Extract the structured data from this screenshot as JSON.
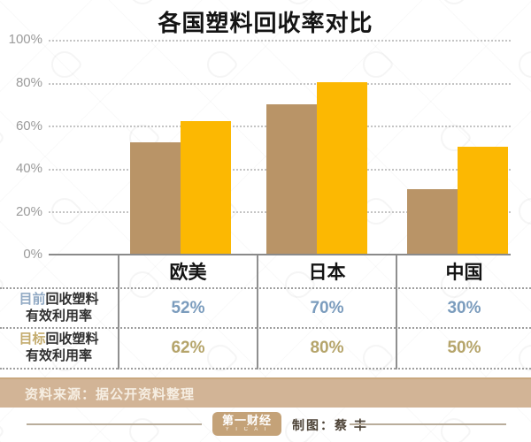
{
  "title": "各国塑料回收率对比",
  "chart_data": {
    "type": "bar",
    "title": "各国塑料回收率对比",
    "categories": [
      "欧美",
      "日本",
      "中国"
    ],
    "series": [
      {
        "name": "目前回收塑料有效利用率",
        "values": [
          52,
          70,
          30
        ],
        "color": "#b99467"
      },
      {
        "name": "目标回收塑料有效利用率",
        "values": [
          62,
          80,
          50
        ],
        "color": "#fcb802"
      }
    ],
    "ylim": [
      0,
      100
    ],
    "yticks": [
      "100%",
      "80%",
      "60%",
      "40%",
      "20%",
      "0%"
    ],
    "grid": true,
    "legend_position": "none"
  },
  "table": {
    "columns": [
      "欧美",
      "日本",
      "中国"
    ],
    "rows": [
      {
        "label_highlight": "目前",
        "label_line1_rest": "回收塑料",
        "label_line2": "有效利用率",
        "values": [
          "52%",
          "70%",
          "30%"
        ],
        "value_color": "#7b9cbd",
        "highlight_color": "#92aac4"
      },
      {
        "label_highlight": "目标",
        "label_line1_rest": "回收塑料",
        "label_line2": "有效利用率",
        "values": [
          "62%",
          "80%",
          "50%"
        ],
        "value_color": "#b5a46a",
        "highlight_color": "#c4ac6e"
      }
    ]
  },
  "source_bar": {
    "text": "资料来源：据公开资料整理",
    "bg_color": "#d2b496"
  },
  "footer": {
    "logo_text": "第一财经",
    "logo_subtext": "Y I C A I",
    "credit_text": "制图：蔡 丰"
  }
}
